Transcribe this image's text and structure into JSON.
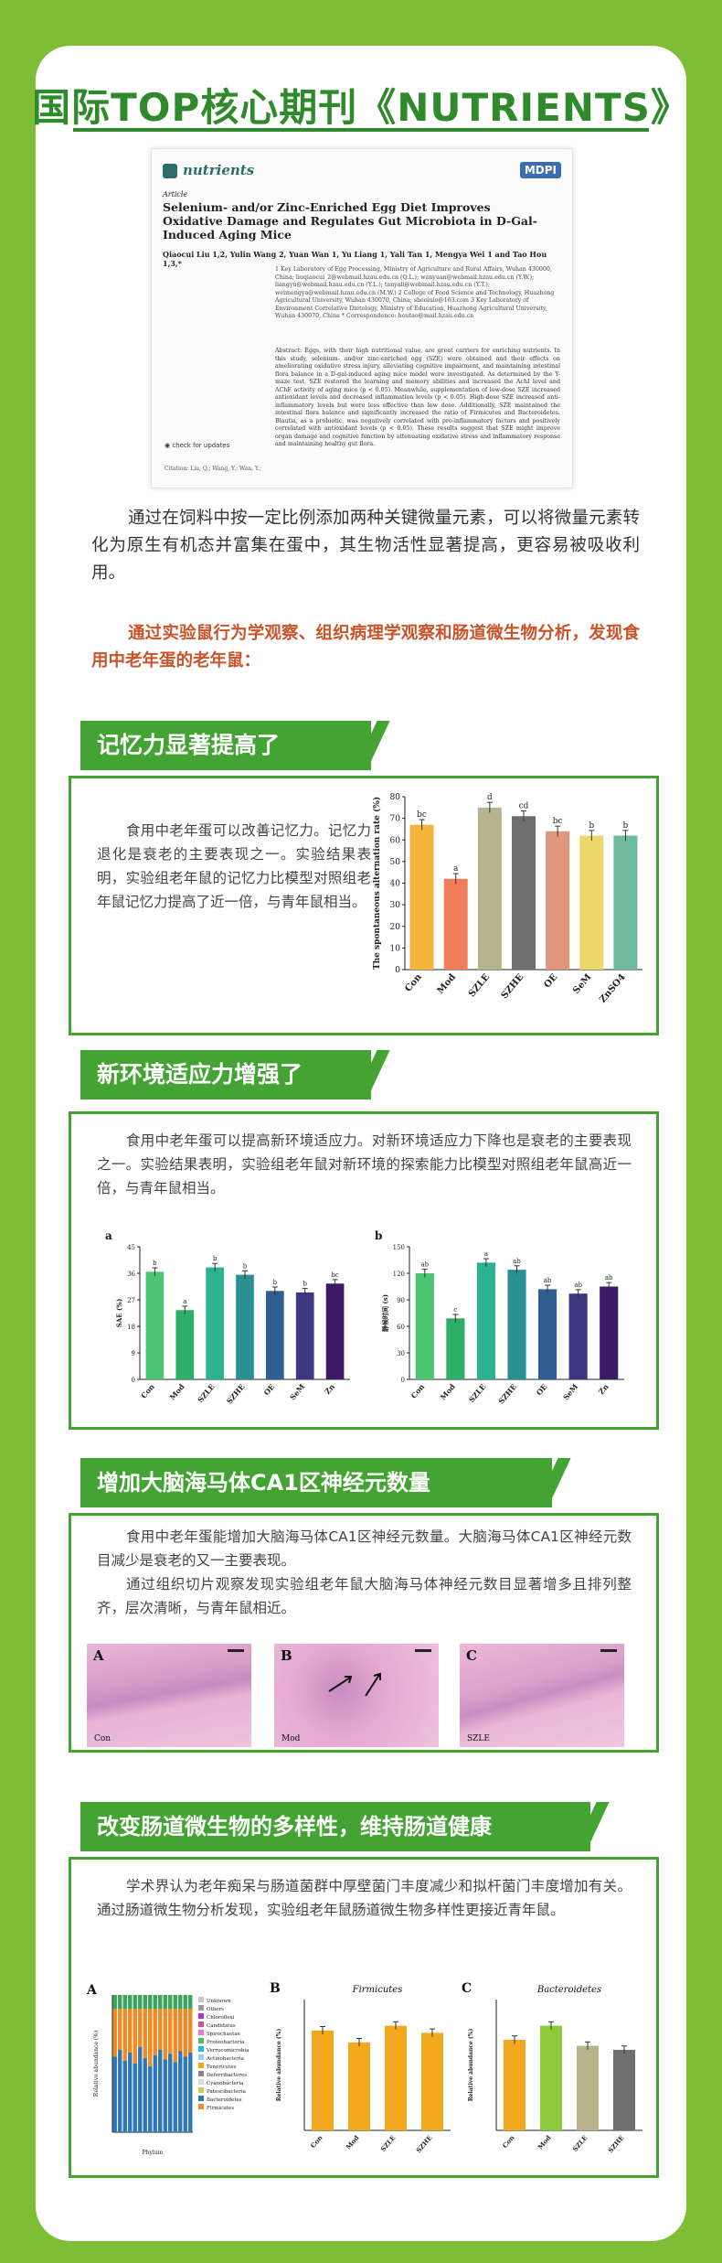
{
  "header": {
    "title": "国际TOP核心期刊《NUTRIENTS》"
  },
  "paper": {
    "journal": "nutrients",
    "publisher": "MDPI",
    "article_type": "Article",
    "title": "Selenium- and/or Zinc-Enriched Egg Diet Improves Oxidative Damage and Regulates Gut Microbiota in D-Gal-Induced Aging Mice",
    "authors": "Qiaocui Liu 1,2, Yulin Wang 2, Yuan Wan 1, Yu Liang 1, Yali Tan 1, Mengya Wei 1 and Tao Hou 1,3,*",
    "affiliations": "1 Key Laboratory of Egg Processing, Ministry of Agriculture and Rural Affairs, Wuhan 430000, China; liuqiaocui_2@webmail.hzau.edu.cn (Q.L.); wanyuan@webmail.hzau.edu.cn (Y.W.); liangyu@webmail.hzau.edu.cn (Y.L.); tanyali@webmail.hzau.edu.cn (Y.T.); weimengya@webmail.hzau.edu.cn (M.W.)  2 College of Food Science and Technology, Huazhong Agricultural University, Wuhan 430070, China; sheoiuio@163.com  3 Key Laboratory of Environment Correlative Dietology, Ministry of Education, Huazhong Agricultural University, Wuhan 430070, China  * Correspondence: houtao@mail.hzau.edu.cn",
    "abstract": "Abstract: Eggs, with their high nutritional value, are great carriers for enriching nutrients. In this study, selenium- and/or zinc-enriched egg (SZE) were obtained and their effects on ameliorating oxidative stress injury, alleviating cognitive impairment, and maintaining intestinal flora balance in a D-gal-induced aging mice model were investigated. As determined by the Y-maze test, SZE restored the learning and memory abilities and increased the AchI level and AChE activity of aging mice (p < 0.05). Meanwhile, supplementation of low-dose SZE increased antioxidant levels and decreased inflammation levels (p < 0.05). High-dose SZE increased anti-inflammatory levels but were less effective than low dose. Additionally, SZE maintained the intestinal flora balance and significantly increased the ratio of Firmicutes and Bacteroidetes. Blautia, as a probiotic, was negatively correlated with pro-inflammatory factors and positively correlated with antioxidant levels (p < 0.05). These results suggest that SZE might improve organ damage and cognitive function by attenuating oxidative stress and inflammatory response and maintaining healthy gut flora.",
    "check_updates": "check for updates",
    "citation": "Citation: Liu, Q.; Wang, Y.; Wan, Y.;"
  },
  "intro": {
    "p1": "通过在饲料中按一定比例添加两种关键微量元素，可以将微量元素转化为原生有机态并富集在蛋中，其生物活性显著提高，更容易被吸收利用。",
    "p2": "通过实验鼠行为学观察、组织病理学观察和肠道微生物分析，发现食用中老年蛋的老年鼠："
  },
  "sections": {
    "memory": {
      "title": "记忆力显著提高了",
      "text": "食用中老年蛋可以改善记忆力。记忆力退化是衰老的主要表现之一。实验结果表明，实验组老年鼠的记忆力比模型对照组老年鼠记忆力提高了近一倍，与青年鼠相当。"
    },
    "adapt": {
      "title": "新环境适应力增强了",
      "text": "食用中老年蛋可以提高新环境适应力。对新环境适应力下降也是衰老的主要表现之一。实验结果表明，实验组老年鼠对新环境的探索能力比模型对照组老年鼠高近一倍，与青年鼠相当。"
    },
    "neuron": {
      "title": "增加大脑海马体CA1区神经元数量",
      "text1": "食用中老年蛋能增加大脑海马体CA1区神经元数量。大脑海马体CA1区神经元数目减少是衰老的又一主要表现。",
      "text2": "通过组织切片观察发现实验组老年鼠大脑海马体神经元数目显著增多且排列整齐，层次清晰，与青年鼠相近。",
      "panels": [
        {
          "label": "A",
          "caption": "Con"
        },
        {
          "label": "B",
          "caption": "Mod"
        },
        {
          "label": "C",
          "caption": "SZLE"
        }
      ]
    },
    "gut": {
      "title": "改变肠道微生物的多样性，维持肠道健康",
      "text": "学术界认为老年痴呆与肠道菌群中厚壁菌门丰度减少和拟杆菌门丰度增加有关。通过肠道微生物分析发现，实验组老年鼠肠道微生物多样性更接近青年鼠。"
    }
  },
  "chart_data": [
    {
      "type": "bar",
      "ylabel": "The spontaneous alternation rate (%)",
      "ylim": [
        0,
        80
      ],
      "yticks": [
        0,
        10,
        20,
        30,
        40,
        50,
        60,
        70,
        80
      ],
      "categories": [
        "Con",
        "Mod",
        "SZLE",
        "SZHE",
        "OE",
        "SeM",
        "ZnSO4"
      ],
      "values": [
        67,
        42,
        75,
        71,
        64,
        62,
        62
      ],
      "sig": [
        "bc",
        "a",
        "d",
        "cd",
        "bc",
        "b",
        "b"
      ],
      "colors": [
        "#f4b33a",
        "#f27d5a",
        "#b5b48d",
        "#6e6e6e",
        "#e0977e",
        "#ecd86a",
        "#6fba9e"
      ]
    },
    {
      "type": "bar",
      "panel": "a",
      "ylabel": "SAE (%)",
      "ylim": [
        0,
        45
      ],
      "yticks": [
        0,
        9,
        18,
        27,
        36,
        45
      ],
      "categories": [
        "Con",
        "Mod",
        "SZLE",
        "SZHE",
        "OE",
        "SeM",
        "Zn"
      ],
      "values": [
        36.5,
        23.5,
        38,
        35.5,
        30,
        29.5,
        32.5
      ],
      "sig": [
        "b",
        "a",
        "b",
        "b",
        "b",
        "b",
        "bc"
      ],
      "colors": [
        "#4bc572",
        "#2fae67",
        "#2bb291",
        "#2b8f93",
        "#2e5e92",
        "#3d3882",
        "#3e1a64"
      ]
    },
    {
      "type": "bar",
      "panel": "b",
      "ylabel": "静候时间 (s)",
      "ylim": [
        0,
        150
      ],
      "yticks": [
        0,
        30,
        60,
        90,
        120,
        150
      ],
      "categories": [
        "Con",
        "Mod",
        "SZLE",
        "SZHE",
        "OE",
        "SeM",
        "Zn"
      ],
      "values": [
        120,
        69,
        132,
        124,
        102,
        97,
        105
      ],
      "sig": [
        "ab",
        "c",
        "a",
        "ab",
        "ab",
        "ab",
        "ab"
      ],
      "colors": [
        "#4bc572",
        "#2fae67",
        "#2bb291",
        "#2b8f93",
        "#2e5e92",
        "#3d3882",
        "#3e1a64"
      ]
    },
    {
      "type": "bar",
      "panel": "A",
      "stacked": true,
      "ylabel": "Relative abundance (%)",
      "xlabel": "Phylum",
      "legend": [
        "Unknown",
        "Others",
        "Chloroflexi",
        "Candidatus",
        "Spirochaetae",
        "Proteobacteria",
        "Verrucomicrobia",
        "Actinobacteria",
        "Tenericutes",
        "Deferribacteres",
        "Cyanobacteria",
        "Patescibacteria",
        "Bacteroidetes",
        "Firmicutes"
      ],
      "bar_count": 16,
      "series": [
        {
          "name": "Bacteroidetes",
          "values": [
            55,
            60,
            52,
            58,
            50,
            62,
            54,
            48,
            56,
            60,
            53,
            57,
            51,
            59,
            55,
            58
          ]
        },
        {
          "name": "Firmicutes",
          "values": [
            35,
            30,
            38,
            32,
            40,
            28,
            36,
            42,
            34,
            30,
            37,
            33,
            39,
            31,
            35,
            32
          ]
        },
        {
          "name": "Others",
          "values": [
            10,
            10,
            10,
            10,
            10,
            10,
            10,
            10,
            10,
            10,
            10,
            10,
            10,
            10,
            10,
            10
          ]
        }
      ]
    },
    {
      "type": "bar",
      "panel": "B",
      "title": "Firmicutes",
      "ylabel": "Relative abundance (%)",
      "categories": [
        "Con",
        "Mod",
        "SZLE",
        "SZHE"
      ],
      "values": [
        42,
        37,
        44,
        41
      ],
      "color": "#f4a81d"
    },
    {
      "type": "bar",
      "panel": "C",
      "title": "Bacteroidetes",
      "ylabel": "Relative abundance (%)",
      "categories": [
        "Con",
        "Mod",
        "SZLE",
        "SZHE"
      ],
      "values": [
        45,
        52,
        42,
        40
      ],
      "colors": [
        "#f4a81d",
        "#8ccc3c",
        "#b9b48c",
        "#6e6e6e"
      ]
    }
  ]
}
